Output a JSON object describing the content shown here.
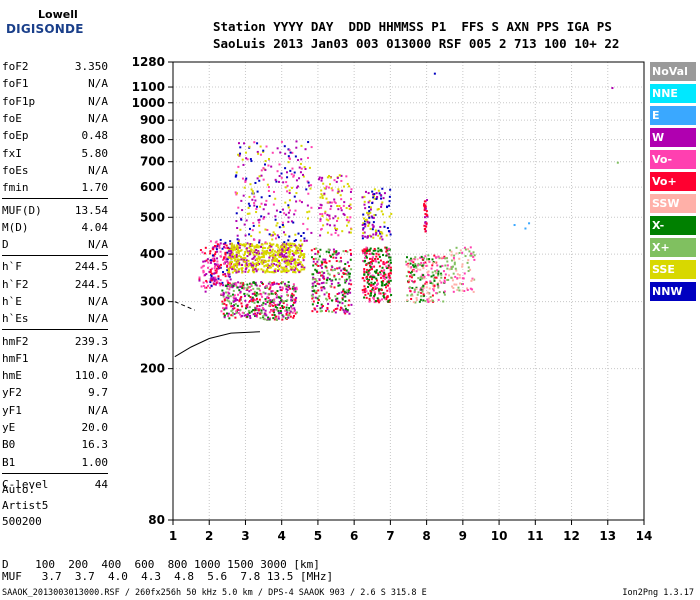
{
  "logo": {
    "line1": "Lowell",
    "line2": "DIGISONDE"
  },
  "header": {
    "line1": "Station YYYY DAY  DDD HHMMSS P1  FFS S AXN PPS IGA PS",
    "line2": "SaoLuis 2013 Jan03 003 013000 RSF 005 2 713 100 10+ 22"
  },
  "params": [
    {
      "k": "foF2",
      "v": "3.350"
    },
    {
      "k": "foF1",
      "v": "N/A"
    },
    {
      "k": "foF1p",
      "v": "N/A"
    },
    {
      "k": "foE",
      "v": "N/A"
    },
    {
      "k": "foEp",
      "v": "0.48"
    },
    {
      "k": "fxI",
      "v": "5.80"
    },
    {
      "k": "foEs",
      "v": "N/A"
    },
    {
      "k": "fmin",
      "v": "1.70"
    },
    {
      "sep": true
    },
    {
      "k": "MUF(D)",
      "v": "13.54"
    },
    {
      "k": "M(D)",
      "v": "4.04"
    },
    {
      "k": "D",
      "v": "N/A"
    },
    {
      "sep": true
    },
    {
      "k": "h`F",
      "v": "244.5"
    },
    {
      "k": "h`F2",
      "v": "244.5"
    },
    {
      "k": "h`E",
      "v": "N/A"
    },
    {
      "k": "h`Es",
      "v": "N/A"
    },
    {
      "sep": true
    },
    {
      "k": "hmF2",
      "v": "239.3"
    },
    {
      "k": "hmF1",
      "v": "N/A"
    },
    {
      "k": "hmE",
      "v": "110.0"
    },
    {
      "k": "yF2",
      "v": "9.7"
    },
    {
      "k": "yF1",
      "v": "N/A"
    },
    {
      "k": "yE",
      "v": "20.0"
    },
    {
      "k": "B0",
      "v": "16.3"
    },
    {
      "k": "B1",
      "v": "1.00"
    },
    {
      "sep": true
    },
    {
      "k": "C-level",
      "v": "44"
    }
  ],
  "auto": {
    "l1": "Auto:",
    "l2": "Artist5",
    "l3": "500200"
  },
  "legend": [
    {
      "label": "NoVal",
      "color": "#9a9a9a"
    },
    {
      "label": "NNE",
      "color": "#00e8ff"
    },
    {
      "label": "E",
      "color": "#3aa8ff"
    },
    {
      "label": "W",
      "color": "#b000b0"
    },
    {
      "label": "Vo-",
      "color": "#ff40b0"
    },
    {
      "label": "Vo+",
      "color": "#ff0030"
    },
    {
      "label": "SSW",
      "color": "#ffb0a8"
    },
    {
      "label": "X-",
      "color": "#008000"
    },
    {
      "label": "X+",
      "color": "#80c060"
    },
    {
      "label": "SSE",
      "color": "#d8d800"
    },
    {
      "label": "NNW",
      "color": "#0000c0"
    }
  ],
  "dtable": {
    "line1": "D    100  200  400  600  800 1000 1500 3000 [km]",
    "line2": "MUF   3.7  3.7  4.0  4.3  4.8  5.6  7.8 13.5 [MHz]"
  },
  "footer": "SAAOK_2013003013000.RSF / 260fx256h 50 kHz 5.0 km / DPS-4 SAAOK 903 / 2.6 S 315.8 E",
  "version": "Ion2Png 1.3.17",
  "chart_data": {
    "type": "scatter",
    "x_label": "",
    "y_label": "",
    "xlim": [
      1,
      14
    ],
    "ylim": [
      80,
      1280
    ],
    "y_scale": "log",
    "x_ticks": [
      1,
      2,
      3,
      4,
      5,
      6,
      7,
      8,
      9,
      10,
      11,
      12,
      13,
      14
    ],
    "y_ticks": [
      80,
      200,
      300,
      400,
      500,
      600,
      700,
      800,
      900,
      1000,
      1100,
      1280
    ],
    "grid": true,
    "legend_position": "right",
    "clusters": [
      {
        "x": [
          1.7,
          2.2
        ],
        "h": [
          320,
          420
        ],
        "n": 60,
        "colors": [
          "#ff0030",
          "#b000b0",
          "#ff40b0"
        ]
      },
      {
        "x": [
          2.0,
          2.6
        ],
        "h": [
          330,
          440
        ],
        "n": 140,
        "colors": [
          "#b000b0",
          "#ff0030",
          "#ff40b0",
          "#0000c0"
        ]
      },
      {
        "x": [
          2.5,
          4.6
        ],
        "h": [
          360,
          430
        ],
        "n": 600,
        "colors": [
          "#d8d800",
          "#d8d800",
          "#d8d800",
          "#b000b0"
        ]
      },
      {
        "x": [
          2.3,
          4.4
        ],
        "h": [
          270,
          340
        ],
        "n": 450,
        "colors": [
          "#008000",
          "#80c060",
          "#ff0030",
          "#ff40b0",
          "#b000b0"
        ]
      },
      {
        "x": [
          2.7,
          4.8
        ],
        "h": [
          430,
          800
        ],
        "n": 260,
        "colors": [
          "#b000b0",
          "#0000c0",
          "#d8d800",
          "#ff40b0"
        ]
      },
      {
        "x": [
          4.8,
          5.9
        ],
        "h": [
          280,
          420
        ],
        "n": 260,
        "colors": [
          "#008000",
          "#80c060",
          "#ff0030",
          "#b000b0"
        ]
      },
      {
        "x": [
          5.0,
          5.9
        ],
        "h": [
          450,
          650
        ],
        "n": 120,
        "colors": [
          "#d8d800",
          "#b000b0",
          "#ff40b0"
        ]
      },
      {
        "x": [
          6.2,
          7.0
        ],
        "h": [
          300,
          420
        ],
        "n": 280,
        "colors": [
          "#ff0030",
          "#ff40b0",
          "#008000"
        ]
      },
      {
        "x": [
          6.2,
          7.0
        ],
        "h": [
          440,
          600
        ],
        "n": 120,
        "colors": [
          "#d8d800",
          "#b000b0",
          "#0000c0"
        ]
      },
      {
        "x": [
          7.4,
          8.5
        ],
        "h": [
          300,
          400
        ],
        "n": 220,
        "colors": [
          "#ff0030",
          "#ff40b0",
          "#80c060",
          "#008000",
          "#ffb0a8"
        ]
      },
      {
        "x": [
          7.9,
          8.0
        ],
        "h": [
          460,
          560
        ],
        "n": 30,
        "colors": [
          "#b000b0",
          "#ff0030"
        ]
      },
      {
        "x": [
          8.5,
          9.3
        ],
        "h": [
          320,
          420
        ],
        "n": 90,
        "colors": [
          "#ffb0a8",
          "#ff40b0",
          "#80c060"
        ]
      }
    ],
    "points": [
      {
        "x": 8.2,
        "h": 1200,
        "c": "#0000c0"
      },
      {
        "x": 13.1,
        "h": 1100,
        "c": "#b000b0"
      },
      {
        "x": 13.25,
        "h": 700,
        "c": "#80c060"
      },
      {
        "x": 10.4,
        "h": 480,
        "c": "#3aa8ff"
      },
      {
        "x": 10.7,
        "h": 470,
        "c": "#3aa8ff"
      },
      {
        "x": 10.8,
        "h": 485,
        "c": "#3aa8ff"
      }
    ],
    "trace_lines": [
      {
        "x": [
          1.05,
          1.5,
          2.0,
          2.6,
          3.4
        ],
        "h": [
          215,
          228,
          240,
          248,
          250
        ],
        "c": "#000"
      },
      {
        "x": [
          1.05,
          1.6
        ],
        "h": [
          300,
          285
        ],
        "c": "#000",
        "dash": true
      }
    ]
  }
}
